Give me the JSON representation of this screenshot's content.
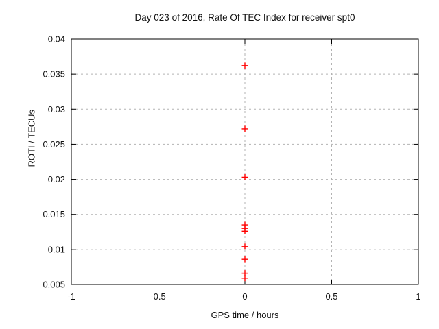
{
  "title": "Day 023 of 2016, Rate Of TEC Index for receiver spt0",
  "chart_data": {
    "type": "scatter",
    "title": "Day 023 of 2016, Rate Of TEC Index for receiver spt0",
    "xlabel": "GPS time / hours",
    "ylabel": "ROTI / TECUs",
    "xlim": [
      -1,
      1
    ],
    "ylim": [
      0.005,
      0.04
    ],
    "xticks": {
      "values": [
        -1,
        -0.5,
        0,
        0.5,
        1
      ],
      "labels": [
        "-1",
        "-0.5",
        "0",
        "0.5",
        "1"
      ]
    },
    "yticks": {
      "values": [
        0.005,
        0.01,
        0.015,
        0.02,
        0.025,
        0.03,
        0.035,
        0.04
      ],
      "labels": [
        "0.005",
        "0.01",
        "0.015",
        "0.02",
        "0.025",
        "0.03",
        "0.035",
        "0.04"
      ]
    },
    "grid": true,
    "legend": "none",
    "series": [
      {
        "name": "ROTI",
        "marker": "plus",
        "color": "#ff0000",
        "points": [
          {
            "x": 0,
            "y": 0.0362
          },
          {
            "x": 0,
            "y": 0.0272
          },
          {
            "x": 0,
            "y": 0.0203
          },
          {
            "x": 0,
            "y": 0.0135
          },
          {
            "x": 0,
            "y": 0.013
          },
          {
            "x": 0,
            "y": 0.0126
          },
          {
            "x": 0,
            "y": 0.0104
          },
          {
            "x": 0,
            "y": 0.0086
          },
          {
            "x": 0,
            "y": 0.0066
          },
          {
            "x": 0,
            "y": 0.0059
          }
        ]
      }
    ],
    "colors": {
      "marker": "#ff0000",
      "grid": "#b3b3b3",
      "axis": "#000000",
      "text": "#111111",
      "background": "#ffffff"
    }
  }
}
